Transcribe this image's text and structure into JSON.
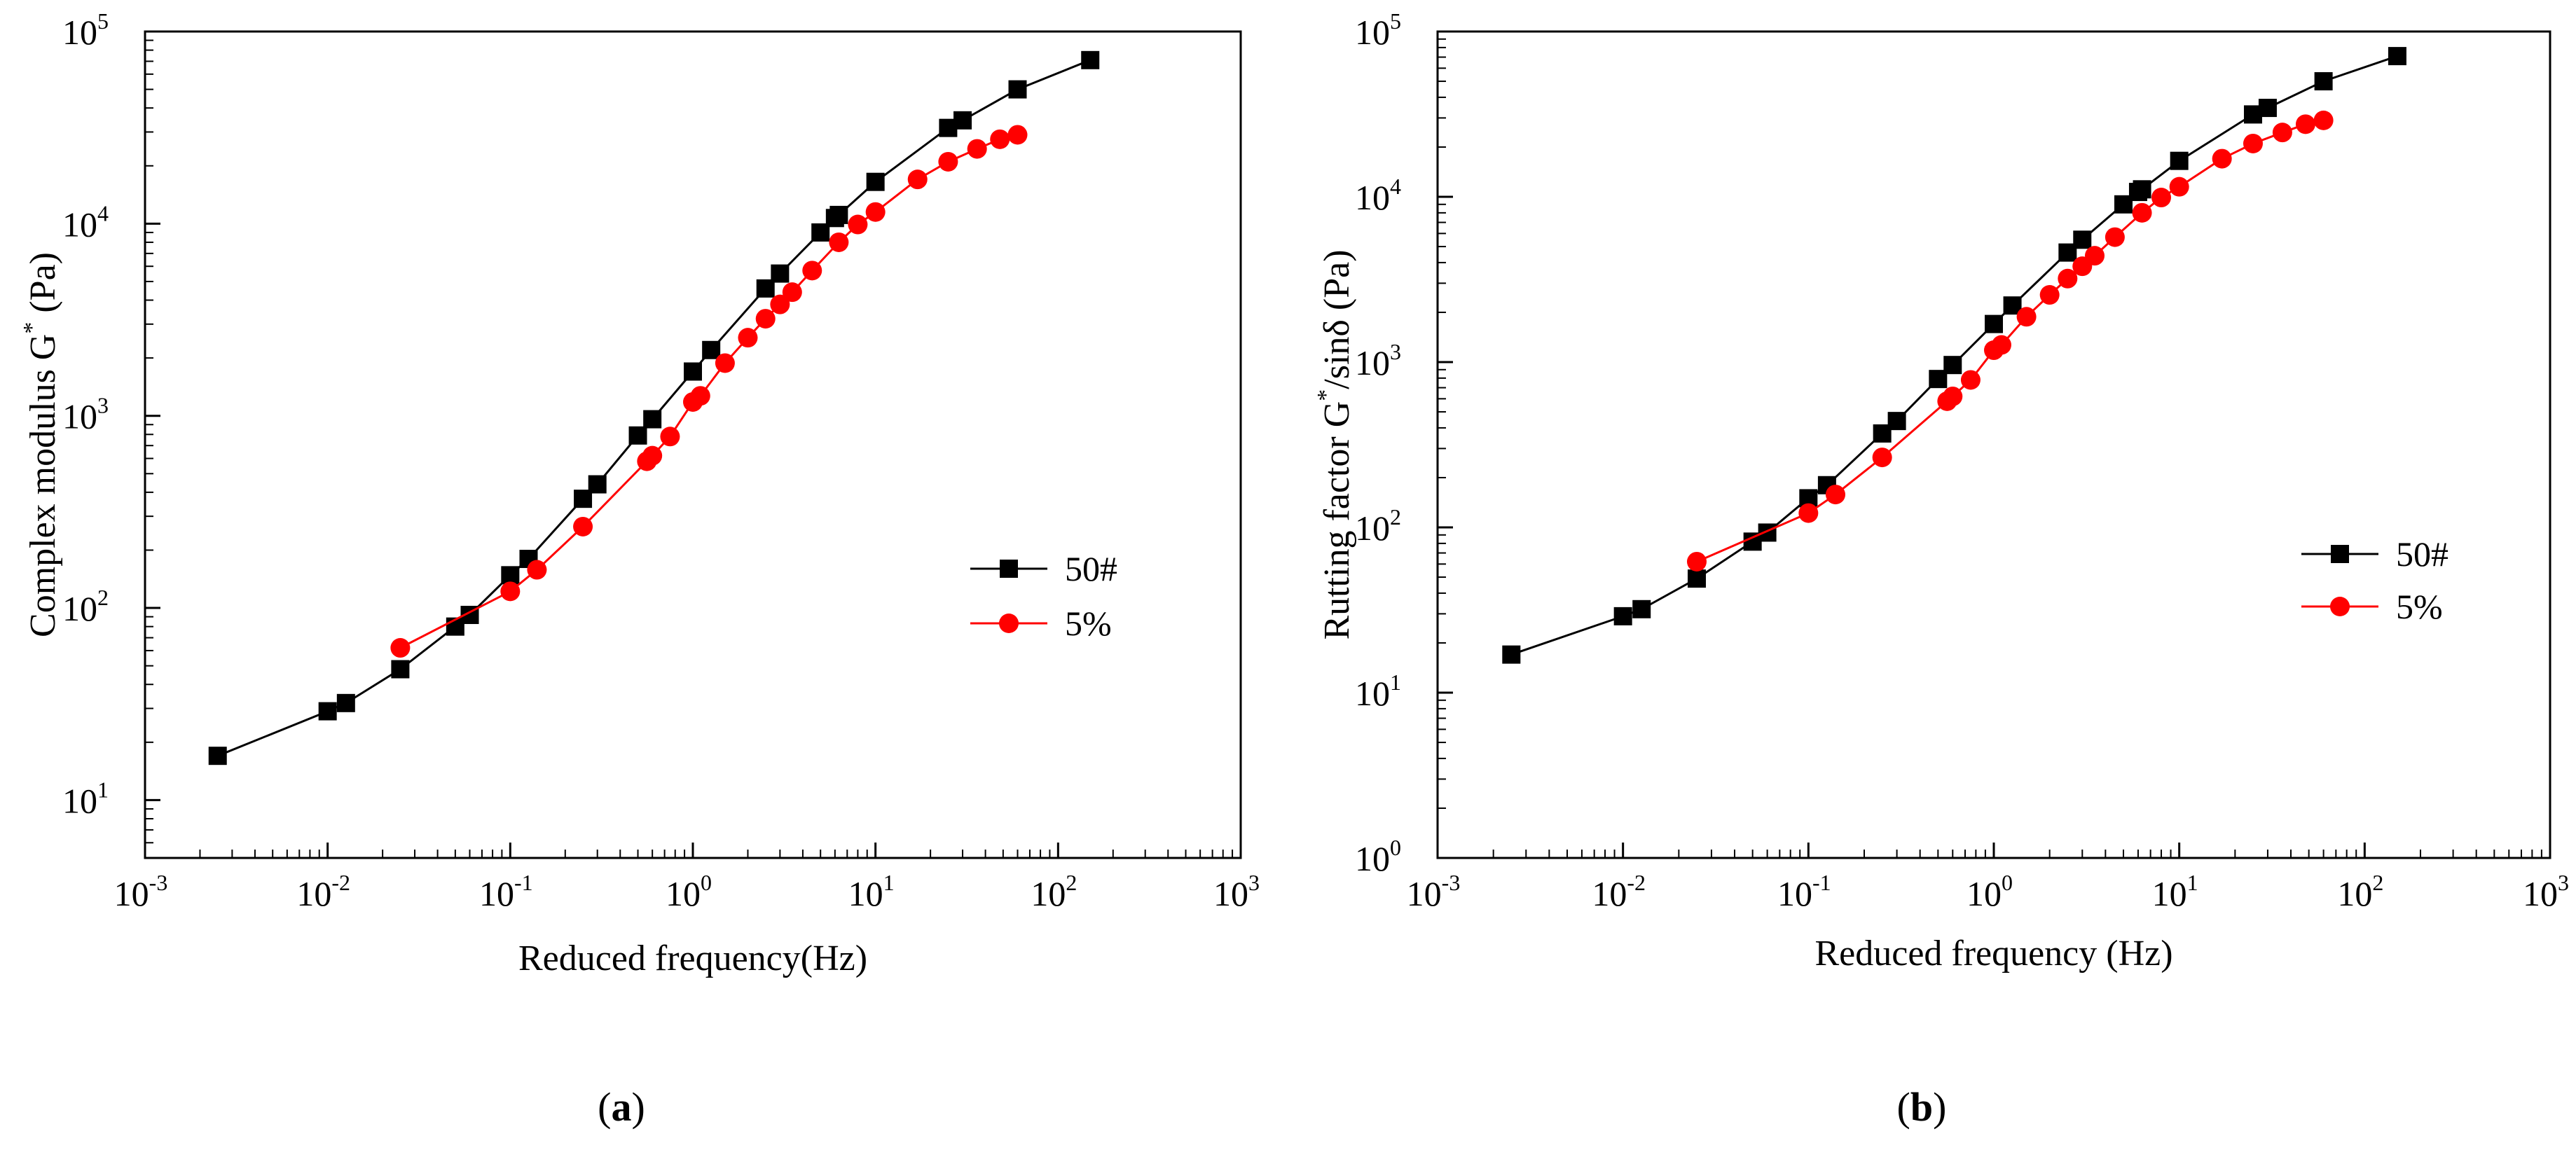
{
  "panels": [
    {
      "label_open": "(",
      "label_letter": "a",
      "label_close": ")"
    },
    {
      "label_open": "(",
      "label_letter": "b",
      "label_close": ")"
    }
  ],
  "chart_data": [
    {
      "type": "line",
      "xlabel": "Reduced frequency(Hz)",
      "ylabel": {
        "main": "Complex modulus G",
        "sup": "*",
        "tail": " (Pa)"
      },
      "x_scale": "log",
      "y_scale": "log",
      "xlim": [
        0.001,
        1000
      ],
      "ylim": [
        5,
        100000
      ],
      "x_ticks": [
        {
          "base": "10",
          "exp": "-3",
          "v": 0.001
        },
        {
          "base": "10",
          "exp": "-2",
          "v": 0.01
        },
        {
          "base": "10",
          "exp": "-1",
          "v": 0.1
        },
        {
          "base": "10",
          "exp": "0",
          "v": 1
        },
        {
          "base": "10",
          "exp": "1",
          "v": 10
        },
        {
          "base": "10",
          "exp": "2",
          "v": 100
        },
        {
          "base": "10",
          "exp": "3",
          "v": 1000
        }
      ],
      "y_ticks": [
        {
          "base": "10",
          "exp": "1",
          "v": 10
        },
        {
          "base": "10",
          "exp": "2",
          "v": 100
        },
        {
          "base": "10",
          "exp": "3",
          "v": 1000
        },
        {
          "base": "10",
          "exp": "4",
          "v": 10000
        },
        {
          "base": "10",
          "exp": "5",
          "v": 100000
        }
      ],
      "grid": false,
      "legend_position": "right-middle",
      "series": [
        {
          "name": "50#",
          "color": "#000000",
          "marker": "square",
          "x": [
            0.0025,
            0.01,
            0.0126,
            0.025,
            0.05,
            0.06,
            0.1,
            0.126,
            0.25,
            0.3,
            0.5,
            0.6,
            1.0,
            1.26,
            2.5,
            3.0,
            5.0,
            6.0,
            6.3,
            10,
            25,
            30,
            60,
            150
          ],
          "y": [
            17,
            29,
            32,
            48,
            80,
            92,
            148,
            180,
            370,
            440,
            790,
            960,
            1700,
            2200,
            4600,
            5500,
            9000,
            10700,
            11100,
            16500,
            31500,
            34500,
            50000,
            71000
          ]
        },
        {
          "name": "5%",
          "color": "#ff0000",
          "marker": "circle",
          "x": [
            0.025,
            0.1,
            0.14,
            0.25,
            0.56,
            0.6,
            0.75,
            1.0,
            1.1,
            1.5,
            2.0,
            2.5,
            3.0,
            3.5,
            4.5,
            6.3,
            8.0,
            10,
            17,
            25,
            36,
            48,
            60
          ],
          "y": [
            62,
            122,
            158,
            265,
            580,
            620,
            780,
            1180,
            1270,
            1880,
            2550,
            3200,
            3800,
            4400,
            5700,
            8000,
            9900,
            11500,
            17000,
            21000,
            24500,
            27500,
            29000
          ]
        }
      ]
    },
    {
      "type": "line",
      "xlabel": "Reduced frequency (Hz)",
      "ylabel": {
        "main": "Rutting factor G",
        "sup": "*",
        "tail": "/sinδ (Pa)"
      },
      "x_scale": "log",
      "y_scale": "log",
      "xlim": [
        0.001,
        1000
      ],
      "ylim": [
        1,
        100000
      ],
      "x_ticks": [
        {
          "base": "10",
          "exp": "-3",
          "v": 0.001
        },
        {
          "base": "10",
          "exp": "-2",
          "v": 0.01
        },
        {
          "base": "10",
          "exp": "-1",
          "v": 0.1
        },
        {
          "base": "10",
          "exp": "0",
          "v": 1
        },
        {
          "base": "10",
          "exp": "1",
          "v": 10
        },
        {
          "base": "10",
          "exp": "2",
          "v": 100
        },
        {
          "base": "10",
          "exp": "3",
          "v": 1000
        }
      ],
      "y_ticks": [
        {
          "base": "10",
          "exp": "0",
          "v": 1
        },
        {
          "base": "10",
          "exp": "1",
          "v": 10
        },
        {
          "base": "10",
          "exp": "2",
          "v": 100
        },
        {
          "base": "10",
          "exp": "3",
          "v": 1000
        },
        {
          "base": "10",
          "exp": "4",
          "v": 10000
        },
        {
          "base": "10",
          "exp": "5",
          "v": 100000
        }
      ],
      "grid": false,
      "legend_position": "right-middle",
      "series": [
        {
          "name": "50#",
          "color": "#000000",
          "marker": "square",
          "x": [
            0.0025,
            0.01,
            0.0126,
            0.025,
            0.05,
            0.06,
            0.1,
            0.126,
            0.25,
            0.3,
            0.5,
            0.6,
            1.0,
            1.26,
            2.5,
            3.0,
            5.0,
            6.0,
            6.3,
            10,
            25,
            30,
            60,
            150
          ],
          "y": [
            17,
            29,
            32,
            49,
            82,
            93,
            150,
            180,
            370,
            440,
            790,
            960,
            1700,
            2200,
            4600,
            5500,
            9000,
            10700,
            11100,
            16500,
            31500,
            34500,
            50000,
            71000
          ]
        },
        {
          "name": "5%",
          "color": "#ff0000",
          "marker": "circle",
          "x": [
            0.025,
            0.1,
            0.14,
            0.25,
            0.56,
            0.6,
            0.75,
            1.0,
            1.1,
            1.5,
            2.0,
            2.5,
            3.0,
            3.5,
            4.5,
            6.3,
            8.0,
            10,
            17,
            25,
            36,
            48,
            60
          ],
          "y": [
            62,
            122,
            158,
            265,
            580,
            620,
            780,
            1180,
            1270,
            1880,
            2550,
            3200,
            3800,
            4400,
            5700,
            8000,
            9900,
            11500,
            17000,
            21000,
            24500,
            27500,
            29000
          ]
        }
      ]
    }
  ]
}
